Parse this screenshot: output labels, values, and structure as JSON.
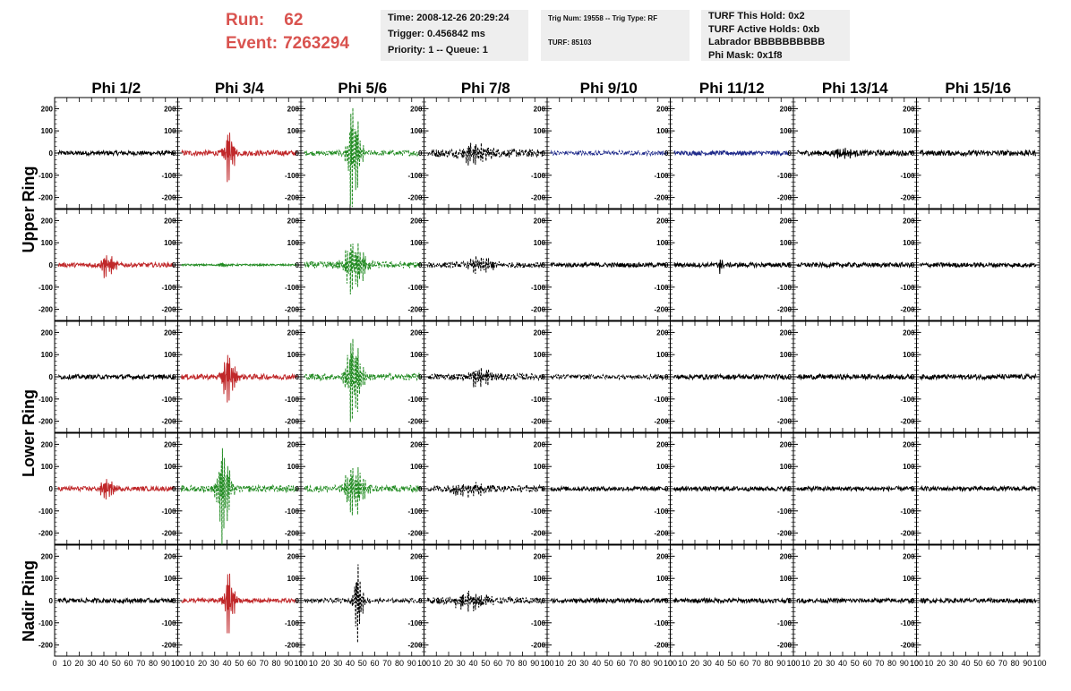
{
  "header": {
    "run_label": "Run:",
    "run_value": "62",
    "event_label": "Event:",
    "event_value": "7263294",
    "time": "Time: 2008-12-26 20:29:24",
    "trigger": "Trigger: 0.456842 ms",
    "priority": "Priority: 1 -- Queue: 1",
    "trig_num": "Trig Num: 19558 -- Trig Type: RF",
    "turf": "TURF: 85103",
    "turf_hold": "TURF This Hold: 0x2",
    "turf_active": "TURF Active Holds: 0xb",
    "labrador": "Labrador BBBBBBBBBB",
    "phi_mask": "Phi Mask: 0x1f8"
  },
  "colors": {
    "title_red": "#d9534f",
    "red": "#c0282a",
    "green": "#228b22",
    "blue": "#1f2a8a",
    "black": "#000000"
  },
  "chart_data": {
    "type": "line",
    "columns": [
      "Phi 1/2",
      "Phi 3/4",
      "Phi 5/6",
      "Phi 7/8",
      "Phi 9/10",
      "Phi 11/12",
      "Phi 13/14",
      "Phi 15/16"
    ],
    "row_labels": [
      "Upper Ring",
      "Lower Ring",
      "Nadir Ring"
    ],
    "xlim": [
      0,
      100
    ],
    "ylim": [
      -250,
      250
    ],
    "y_ticks": [
      200,
      100,
      0,
      -100,
      -200
    ],
    "x_ticks": [
      0,
      10,
      20,
      30,
      40,
      50,
      60,
      70,
      80,
      90,
      100
    ],
    "x_tick_labels": [
      "0",
      "10",
      "20",
      "30",
      "40",
      "50",
      "60",
      "70",
      "80",
      "90",
      "100"
    ],
    "grid": false,
    "panels": [
      [
        {
          "color": "black",
          "dashed": false,
          "noise": 10,
          "center": 50,
          "amp": 0,
          "width": 5
        },
        {
          "color": "red",
          "dashed": false,
          "noise": 12,
          "center": 41,
          "amp": 140,
          "width": 5
        },
        {
          "color": "green",
          "dashed": true,
          "noise": 12,
          "center": 42,
          "amp": 280,
          "width": 6
        },
        {
          "color": "black",
          "dashed": true,
          "noise": 18,
          "center": 40,
          "amp": 50,
          "width": 14
        },
        {
          "color": "blue",
          "dashed": true,
          "noise": 10,
          "center": 50,
          "amp": 0,
          "width": 5
        },
        {
          "color": "blue",
          "dashed": false,
          "noise": 10,
          "center": 50,
          "amp": 0,
          "width": 5
        },
        {
          "color": "black",
          "dashed": false,
          "noise": 12,
          "center": 40,
          "amp": 20,
          "width": 10
        },
        {
          "color": "black",
          "dashed": false,
          "noise": 12,
          "center": 50,
          "amp": 0,
          "width": 5
        }
      ],
      [
        {
          "color": "red",
          "dashed": false,
          "noise": 10,
          "center": 42,
          "amp": 60,
          "width": 7
        },
        {
          "color": "green",
          "dashed": false,
          "noise": 4,
          "center": 36,
          "amp": 10,
          "width": 5
        },
        {
          "color": "green",
          "dashed": true,
          "noise": 15,
          "center": 42,
          "amp": 140,
          "width": 10
        },
        {
          "color": "black",
          "dashed": true,
          "noise": 12,
          "center": 45,
          "amp": 40,
          "width": 12
        },
        {
          "color": "black",
          "dashed": false,
          "noise": 10,
          "center": 50,
          "amp": 0,
          "width": 5
        },
        {
          "color": "black",
          "dashed": false,
          "noise": 10,
          "center": 40,
          "amp": 35,
          "width": 3
        },
        {
          "color": "black",
          "dashed": false,
          "noise": 10,
          "center": 50,
          "amp": 0,
          "width": 5
        },
        {
          "color": "black",
          "dashed": false,
          "noise": 10,
          "center": 50,
          "amp": 0,
          "width": 5
        }
      ],
      [
        {
          "color": "black",
          "dashed": false,
          "noise": 10,
          "center": 50,
          "amp": 0,
          "width": 5
        },
        {
          "color": "red",
          "dashed": false,
          "noise": 12,
          "center": 40,
          "amp": 140,
          "width": 6
        },
        {
          "color": "green",
          "dashed": true,
          "noise": 15,
          "center": 42,
          "amp": 230,
          "width": 7
        },
        {
          "color": "black",
          "dashed": true,
          "noise": 14,
          "center": 45,
          "amp": 45,
          "width": 12
        },
        {
          "color": "black",
          "dashed": true,
          "noise": 10,
          "center": 50,
          "amp": 0,
          "width": 5
        },
        {
          "color": "black",
          "dashed": false,
          "noise": 11,
          "center": 50,
          "amp": 0,
          "width": 5
        },
        {
          "color": "black",
          "dashed": false,
          "noise": 11,
          "center": 50,
          "amp": 0,
          "width": 5
        },
        {
          "color": "black",
          "dashed": false,
          "noise": 11,
          "center": 50,
          "amp": 0,
          "width": 5
        }
      ],
      [
        {
          "color": "red",
          "dashed": false,
          "noise": 10,
          "center": 42,
          "amp": 45,
          "width": 8
        },
        {
          "color": "green",
          "dashed": true,
          "noise": 15,
          "center": 36,
          "amp": 260,
          "width": 6
        },
        {
          "color": "green",
          "dashed": true,
          "noise": 15,
          "center": 42,
          "amp": 130,
          "width": 10
        },
        {
          "color": "black",
          "dashed": true,
          "noise": 14,
          "center": 35,
          "amp": 30,
          "width": 20
        },
        {
          "color": "black",
          "dashed": false,
          "noise": 10,
          "center": 50,
          "amp": 0,
          "width": 5
        },
        {
          "color": "black",
          "dashed": false,
          "noise": 10,
          "center": 50,
          "amp": 0,
          "width": 5
        },
        {
          "color": "black",
          "dashed": false,
          "noise": 10,
          "center": 50,
          "amp": 0,
          "width": 5
        },
        {
          "color": "black",
          "dashed": false,
          "noise": 10,
          "center": 50,
          "amp": 0,
          "width": 5
        }
      ],
      [
        {
          "color": "black",
          "dashed": false,
          "noise": 10,
          "center": 50,
          "amp": 0,
          "width": 5
        },
        {
          "color": "red",
          "dashed": false,
          "noise": 10,
          "center": 41,
          "amp": 170,
          "width": 5
        },
        {
          "color": "black",
          "dashed": true,
          "noise": 10,
          "center": 46,
          "amp": 190,
          "width": 4
        },
        {
          "color": "black",
          "dashed": true,
          "noise": 15,
          "center": 35,
          "amp": 40,
          "width": 18
        },
        {
          "color": "black",
          "dashed": false,
          "noise": 10,
          "center": 50,
          "amp": 0,
          "width": 5
        },
        {
          "color": "black",
          "dashed": false,
          "noise": 10,
          "center": 50,
          "amp": 0,
          "width": 5
        },
        {
          "color": "black",
          "dashed": false,
          "noise": 10,
          "center": 50,
          "amp": 0,
          "width": 5
        },
        {
          "color": "black",
          "dashed": false,
          "noise": 10,
          "center": 50,
          "amp": 0,
          "width": 5
        }
      ]
    ]
  }
}
